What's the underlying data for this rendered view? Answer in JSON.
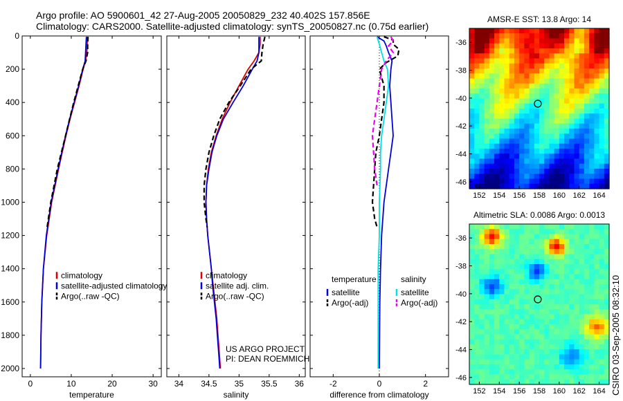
{
  "header": {
    "line1": "Argo profile: AO 5900601_42 27-Aug-2005 20050829_232 40.402S 157.856E",
    "line2": "Climatology: CARS2000. Satellite-adjusted climatology: synTS_20050827.nc (0.75d earlier)"
  },
  "side_text": "CSIRO 03-Sep-2005 08:32:10",
  "colors": {
    "climatology": "#dd0000",
    "satellite": "#0000dd",
    "argo": "#000000",
    "satellite_salinity": "#00e0e0",
    "argo_adj_salinity": "#ee00ee"
  },
  "chart_data": [
    {
      "type": "line",
      "id": "temperature",
      "xlabel": "temperature",
      "ylabel": "",
      "xlim": [
        -2,
        32
      ],
      "ylim": [
        2050,
        0
      ],
      "y_reversed": true,
      "xticks": [
        0,
        10,
        20,
        30
      ],
      "xtick_labels": [
        "0",
        "10",
        "20",
        "30"
      ],
      "yticks": [
        0,
        200,
        400,
        600,
        800,
        1000,
        1200,
        1400,
        1600,
        1800,
        2000
      ],
      "ytick_labels": [
        "0",
        "200",
        "400",
        "600",
        "800",
        "1000",
        "1200",
        "1400",
        "1600",
        "1800",
        "2000"
      ],
      "legend": [
        "climatology",
        "satellite-adjusted climatology",
        "Argo(..raw -QC)"
      ],
      "series": [
        {
          "name": "climatology",
          "color_key": "climatology",
          "style": "solid",
          "y": [
            5,
            50,
            100,
            150,
            200,
            300,
            400,
            500,
            600,
            700,
            800,
            1000,
            1200,
            1400,
            1600,
            1800,
            2000
          ],
          "x": [
            13.9,
            13.9,
            13.8,
            13.5,
            12.9,
            11.9,
            10.8,
            9.7,
            8.7,
            7.8,
            6.9,
            5.2,
            4.0,
            3.2,
            2.8,
            2.6,
            2.5
          ]
        },
        {
          "name": "satellite-adjusted climatology",
          "color_key": "satellite",
          "style": "solid",
          "y": [
            5,
            50,
            100,
            150,
            200,
            300,
            400,
            500,
            600,
            700,
            800,
            1000,
            1200,
            1400,
            1600,
            1800,
            2000
          ],
          "x": [
            13.7,
            13.6,
            13.5,
            13.4,
            12.8,
            11.8,
            10.7,
            9.6,
            8.6,
            7.7,
            6.8,
            5.1,
            3.9,
            3.2,
            2.8,
            2.6,
            2.5
          ]
        },
        {
          "name": "Argo(..raw -QC)",
          "color_key": "argo",
          "style": "dashed",
          "y": [
            5,
            50,
            100,
            150,
            200,
            300,
            400,
            500,
            600,
            700,
            800,
            1000,
            1150
          ],
          "x": [
            14.1,
            14.0,
            14.0,
            13.6,
            12.8,
            11.7,
            10.6,
            9.6,
            8.6,
            7.6,
            6.6,
            5.0,
            4.1
          ]
        }
      ]
    },
    {
      "type": "line",
      "id": "salinity",
      "xlabel": "salinity",
      "ylabel": "",
      "xlim": [
        33.8,
        36.1
      ],
      "ylim": [
        2050,
        0
      ],
      "y_reversed": true,
      "xticks": [
        34,
        34.5,
        35,
        35.5,
        36
      ],
      "xtick_labels": [
        "34",
        "34.5",
        "35",
        "35.5",
        "36"
      ],
      "legend": [
        "climatology",
        "satellite adj. clim.",
        "Argo(..raw -QC)"
      ],
      "annotation": [
        "US ARGO PROJECT",
        "PI: DEAN ROEMMICH"
      ],
      "series": [
        {
          "name": "climatology",
          "color_key": "climatology",
          "style": "solid",
          "y": [
            5,
            50,
            100,
            150,
            200,
            300,
            400,
            500,
            600,
            700,
            800,
            900,
            1000,
            1100,
            1200,
            1300,
            1400,
            1500,
            1600,
            1700,
            1800,
            1900,
            2000
          ],
          "x": [
            35.35,
            35.35,
            35.33,
            35.25,
            35.15,
            35.0,
            34.85,
            34.72,
            34.62,
            34.54,
            34.49,
            34.46,
            34.45,
            34.46,
            34.48,
            34.51,
            34.54,
            34.57,
            34.6,
            34.63,
            34.65,
            34.67,
            34.69
          ]
        },
        {
          "name": "satellite adj. clim.",
          "color_key": "satellite",
          "style": "solid",
          "y": [
            5,
            50,
            100,
            150,
            200,
            300,
            400,
            500,
            600,
            700,
            800,
            900,
            1000,
            1100,
            1200,
            1300,
            1400,
            1500,
            1600,
            1700,
            1800,
            1900,
            2000
          ],
          "x": [
            35.33,
            35.33,
            35.33,
            35.3,
            35.22,
            35.07,
            34.9,
            34.74,
            34.63,
            34.55,
            34.5,
            34.46,
            34.45,
            34.46,
            34.48,
            34.51,
            34.54,
            34.56,
            34.59,
            34.62,
            34.64,
            34.66,
            34.68
          ]
        },
        {
          "name": "Argo(..raw -QC)",
          "color_key": "argo",
          "style": "dashed",
          "y": [
            5,
            50,
            100,
            150,
            200,
            300,
            400,
            500,
            600,
            700,
            800,
            900,
            1000,
            1100,
            1150
          ],
          "x": [
            35.43,
            35.4,
            35.38,
            35.37,
            35.2,
            35.02,
            34.83,
            34.68,
            34.58,
            34.5,
            34.45,
            34.42,
            34.42,
            34.45,
            34.47
          ]
        }
      ]
    },
    {
      "type": "line",
      "id": "difference",
      "xlabel": "difference from climatology",
      "ylabel": "",
      "xlim": [
        -3,
        3
      ],
      "ylim": [
        2050,
        0
      ],
      "y_reversed": true,
      "xticks": [
        -2,
        0,
        2
      ],
      "xtick_labels": [
        "-2",
        "0",
        "2"
      ],
      "legend_columns": [
        {
          "header": "temperature",
          "items": [
            "satellite",
            "Argo(-adj)"
          ]
        },
        {
          "header": "salinity",
          "items": [
            "satellite",
            "Argo(-adj)"
          ]
        }
      ],
      "series": [
        {
          "name": "satellite",
          "group": "temperature",
          "color_key": "satellite",
          "style": "solid",
          "y": [
            5,
            30,
            60,
            100,
            150,
            200,
            300,
            400,
            500,
            600,
            700,
            800,
            1000,
            1200,
            1400,
            1600,
            2000
          ],
          "x": [
            -0.1,
            0.2,
            0.3,
            0.4,
            0.55,
            0.5,
            0.45,
            0.5,
            0.55,
            0.6,
            0.5,
            0.4,
            0.2,
            0.1,
            0.05,
            0.02,
            0.0
          ]
        },
        {
          "name": "Argo(-adj)",
          "group": "temperature",
          "color_key": "argo",
          "style": "dashed",
          "y": [
            5,
            25,
            50,
            80,
            120,
            160,
            200,
            300,
            400,
            500,
            600,
            700,
            800,
            1000,
            1100,
            1150
          ],
          "x": [
            0.2,
            0.6,
            0.6,
            0.85,
            0.8,
            0.3,
            0.0,
            0.2,
            0.2,
            0.1,
            0.0,
            -0.15,
            -0.2,
            -0.3,
            -0.2,
            -0.1
          ]
        },
        {
          "name": "satellite",
          "group": "salinity",
          "color_key": "satellite_salinity",
          "style": "solid",
          "y": [
            5,
            50,
            100,
            150,
            200,
            300,
            400,
            500,
            600,
            700,
            800,
            1000,
            1200,
            1400,
            1600,
            2000
          ],
          "x": [
            -0.1,
            0.0,
            0.1,
            0.2,
            0.35,
            0.4,
            0.3,
            0.2,
            0.1,
            0.05,
            0.05,
            0.0,
            0.0,
            -0.05,
            -0.05,
            -0.05
          ]
        },
        {
          "name": "Argo(-adj)",
          "group": "salinity",
          "color_key": "argo_adj_salinity",
          "style": "dashed",
          "y": [
            5,
            30,
            60,
            100,
            150,
            200,
            300,
            400,
            500,
            600,
            700,
            800,
            900
          ],
          "x": [
            0.5,
            0.6,
            0.4,
            0.6,
            0.3,
            0.1,
            0.0,
            -0.1,
            -0.2,
            -0.3,
            -0.25,
            -0.2,
            -0.1
          ]
        }
      ]
    },
    {
      "type": "heatmap",
      "id": "sst_map",
      "title": "AMSR-E SST: 13.8 Argo: 14",
      "xlim": [
        151,
        165
      ],
      "ylim": [
        -46.5,
        -35
      ],
      "xticks": [
        152,
        154,
        156,
        158,
        160,
        162,
        164
      ],
      "xtick_labels": [
        "152",
        "154",
        "156",
        "158",
        "160",
        "162",
        "164"
      ],
      "yticks": [
        -36,
        -38,
        -40,
        -42,
        -44,
        -46
      ],
      "ytick_labels": [
        "-36",
        "-38",
        "-40",
        "-42",
        "-44",
        "-46"
      ],
      "marker": {
        "lon": 157.856,
        "lat": -40.402
      },
      "pattern": "warm north (red/orange) grading to cold south (blue)"
    },
    {
      "type": "heatmap",
      "id": "sla_map",
      "title": "Altimetric SLA: 0.0086 Argo: 0.0013",
      "xlim": [
        151,
        165
      ],
      "ylim": [
        -46.5,
        -35
      ],
      "xticks": [
        152,
        154,
        156,
        158,
        160,
        162,
        164
      ],
      "xtick_labels": [
        "152",
        "154",
        "156",
        "158",
        "160",
        "162",
        "164"
      ],
      "yticks": [
        -36,
        -38,
        -40,
        -42,
        -44,
        -46
      ],
      "ytick_labels": [
        "-36",
        "-38",
        "-40",
        "-42",
        "-44",
        "-46"
      ],
      "marker": {
        "lon": 157.856,
        "lat": -40.402
      },
      "pattern": "mostly green with scattered eddies (yellow/red and blue)"
    }
  ]
}
